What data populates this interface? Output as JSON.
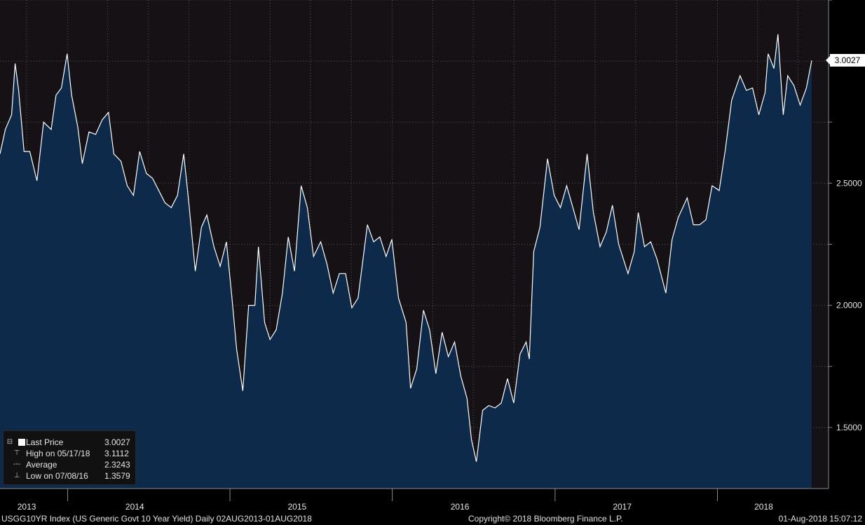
{
  "chart_data": {
    "type": "area",
    "title": "",
    "xlabel": "",
    "ylabel": "",
    "x_range": [
      "2013-08-02",
      "2018-08-01"
    ],
    "ylim": [
      1.25,
      3.25
    ],
    "y_ticks": [
      {
        "value": 1.5,
        "label": "1.5000"
      },
      {
        "value": 2.0,
        "label": "2.0000"
      },
      {
        "value": 2.5,
        "label": "2.5000"
      }
    ],
    "year_labels": [
      {
        "date": "2013-10-01",
        "label": "2013"
      },
      {
        "date": "2014-06-01",
        "label": "2014"
      },
      {
        "date": "2015-06-01",
        "label": "2015"
      },
      {
        "date": "2016-06-01",
        "label": "2016"
      },
      {
        "date": "2017-06-01",
        "label": "2017"
      },
      {
        "date": "2018-04-15",
        "label": "2018"
      }
    ],
    "grid": true,
    "colors": {
      "line": "#ffffff",
      "fill": "#0e2a4a",
      "background": "#151115"
    },
    "series": [
      {
        "name": "Last Price",
        "points": [
          [
            "2013-08-02",
            2.62
          ],
          [
            "2013-08-14",
            2.72
          ],
          [
            "2013-08-28",
            2.78
          ],
          [
            "2013-09-05",
            2.99
          ],
          [
            "2013-09-13",
            2.88
          ],
          [
            "2013-09-25",
            2.63
          ],
          [
            "2013-10-08",
            2.63
          ],
          [
            "2013-10-24",
            2.51
          ],
          [
            "2013-11-08",
            2.75
          ],
          [
            "2013-11-25",
            2.72
          ],
          [
            "2013-12-06",
            2.86
          ],
          [
            "2013-12-18",
            2.89
          ],
          [
            "2013-12-31",
            3.03
          ],
          [
            "2014-01-10",
            2.86
          ],
          [
            "2014-01-24",
            2.73
          ],
          [
            "2014-02-03",
            2.58
          ],
          [
            "2014-02-18",
            2.71
          ],
          [
            "2014-03-05",
            2.7
          ],
          [
            "2014-03-20",
            2.76
          ],
          [
            "2014-04-03",
            2.79
          ],
          [
            "2014-04-15",
            2.62
          ],
          [
            "2014-05-01",
            2.59
          ],
          [
            "2014-05-15",
            2.49
          ],
          [
            "2014-05-29",
            2.45
          ],
          [
            "2014-06-12",
            2.63
          ],
          [
            "2014-06-27",
            2.54
          ],
          [
            "2014-07-11",
            2.52
          ],
          [
            "2014-07-25",
            2.47
          ],
          [
            "2014-08-08",
            2.42
          ],
          [
            "2014-08-22",
            2.4
          ],
          [
            "2014-09-05",
            2.45
          ],
          [
            "2014-09-19",
            2.62
          ],
          [
            "2014-10-01",
            2.41
          ],
          [
            "2014-10-15",
            2.14
          ],
          [
            "2014-10-29",
            2.32
          ],
          [
            "2014-11-10",
            2.37
          ],
          [
            "2014-11-26",
            2.24
          ],
          [
            "2014-12-10",
            2.16
          ],
          [
            "2014-12-24",
            2.26
          ],
          [
            "2015-01-05",
            2.04
          ],
          [
            "2015-01-16",
            1.82
          ],
          [
            "2015-01-30",
            1.65
          ],
          [
            "2015-02-12",
            2.0
          ],
          [
            "2015-02-26",
            2.0
          ],
          [
            "2015-03-06",
            2.24
          ],
          [
            "2015-03-20",
            1.93
          ],
          [
            "2015-04-01",
            1.86
          ],
          [
            "2015-04-15",
            1.9
          ],
          [
            "2015-04-29",
            2.05
          ],
          [
            "2015-05-12",
            2.28
          ],
          [
            "2015-05-26",
            2.14
          ],
          [
            "2015-06-10",
            2.49
          ],
          [
            "2015-06-24",
            2.4
          ],
          [
            "2015-07-08",
            2.2
          ],
          [
            "2015-07-24",
            2.26
          ],
          [
            "2015-08-07",
            2.17
          ],
          [
            "2015-08-21",
            2.05
          ],
          [
            "2015-09-04",
            2.13
          ],
          [
            "2015-09-18",
            2.13
          ],
          [
            "2015-10-02",
            1.99
          ],
          [
            "2015-10-16",
            2.03
          ],
          [
            "2015-11-06",
            2.33
          ],
          [
            "2015-11-20",
            2.26
          ],
          [
            "2015-12-04",
            2.28
          ],
          [
            "2015-12-18",
            2.2
          ],
          [
            "2015-12-31",
            2.27
          ],
          [
            "2016-01-15",
            2.03
          ],
          [
            "2016-02-01",
            1.93
          ],
          [
            "2016-02-11",
            1.66
          ],
          [
            "2016-02-25",
            1.74
          ],
          [
            "2016-03-11",
            1.98
          ],
          [
            "2016-03-25",
            1.9
          ],
          [
            "2016-04-08",
            1.72
          ],
          [
            "2016-04-22",
            1.89
          ],
          [
            "2016-05-06",
            1.79
          ],
          [
            "2016-05-20",
            1.85
          ],
          [
            "2016-06-03",
            1.71
          ],
          [
            "2016-06-17",
            1.62
          ],
          [
            "2016-06-27",
            1.45
          ],
          [
            "2016-07-08",
            1.36
          ],
          [
            "2016-07-22",
            1.57
          ],
          [
            "2016-08-05",
            1.59
          ],
          [
            "2016-08-19",
            1.58
          ],
          [
            "2016-09-02",
            1.6
          ],
          [
            "2016-09-16",
            1.7
          ],
          [
            "2016-09-30",
            1.6
          ],
          [
            "2016-10-14",
            1.8
          ],
          [
            "2016-10-28",
            1.85
          ],
          [
            "2016-11-04",
            1.78
          ],
          [
            "2016-11-14",
            2.22
          ],
          [
            "2016-11-28",
            2.32
          ],
          [
            "2016-12-15",
            2.6
          ],
          [
            "2016-12-30",
            2.45
          ],
          [
            "2017-01-13",
            2.4
          ],
          [
            "2017-01-27",
            2.49
          ],
          [
            "2017-02-10",
            2.4
          ],
          [
            "2017-02-24",
            2.31
          ],
          [
            "2017-03-14",
            2.62
          ],
          [
            "2017-03-28",
            2.38
          ],
          [
            "2017-04-12",
            2.24
          ],
          [
            "2017-04-26",
            2.3
          ],
          [
            "2017-05-10",
            2.41
          ],
          [
            "2017-05-24",
            2.25
          ],
          [
            "2017-06-14",
            2.13
          ],
          [
            "2017-06-28",
            2.22
          ],
          [
            "2017-07-07",
            2.38
          ],
          [
            "2017-07-21",
            2.24
          ],
          [
            "2017-08-04",
            2.26
          ],
          [
            "2017-08-18",
            2.19
          ],
          [
            "2017-09-07",
            2.05
          ],
          [
            "2017-09-21",
            2.27
          ],
          [
            "2017-10-05",
            2.36
          ],
          [
            "2017-10-25",
            2.44
          ],
          [
            "2017-11-08",
            2.33
          ],
          [
            "2017-11-22",
            2.33
          ],
          [
            "2017-12-06",
            2.35
          ],
          [
            "2017-12-20",
            2.49
          ],
          [
            "2018-01-05",
            2.47
          ],
          [
            "2018-01-19",
            2.64
          ],
          [
            "2018-02-02",
            2.84
          ],
          [
            "2018-02-21",
            2.94
          ],
          [
            "2018-03-07",
            2.88
          ],
          [
            "2018-03-21",
            2.89
          ],
          [
            "2018-04-04",
            2.78
          ],
          [
            "2018-04-18",
            2.87
          ],
          [
            "2018-04-25",
            3.03
          ],
          [
            "2018-05-08",
            2.97
          ],
          [
            "2018-05-17",
            3.11
          ],
          [
            "2018-05-29",
            2.78
          ],
          [
            "2018-06-08",
            2.94
          ],
          [
            "2018-06-22",
            2.9
          ],
          [
            "2018-07-06",
            2.82
          ],
          [
            "2018-07-20",
            2.89
          ],
          [
            "2018-08-01",
            3.0027
          ]
        ]
      }
    ]
  },
  "legend": {
    "last_price": {
      "label": "Last Price",
      "value": "3.0027"
    },
    "high": {
      "label": "High on 05/17/18",
      "value": "3.1112"
    },
    "average": {
      "label": "Average",
      "value": "2.3243"
    },
    "low": {
      "label": "Low on 07/08/16",
      "value": "1.3579"
    }
  },
  "price_tag": "3.0027",
  "footer": {
    "left": "USGG10YR Index (US Generic Govt 10 Year Yield)  Daily 02AUG2013-01AUG2018",
    "center": "Copyright© 2018 Bloomberg Finance L.P.",
    "right": "01-Aug-2018 15:07:12"
  }
}
